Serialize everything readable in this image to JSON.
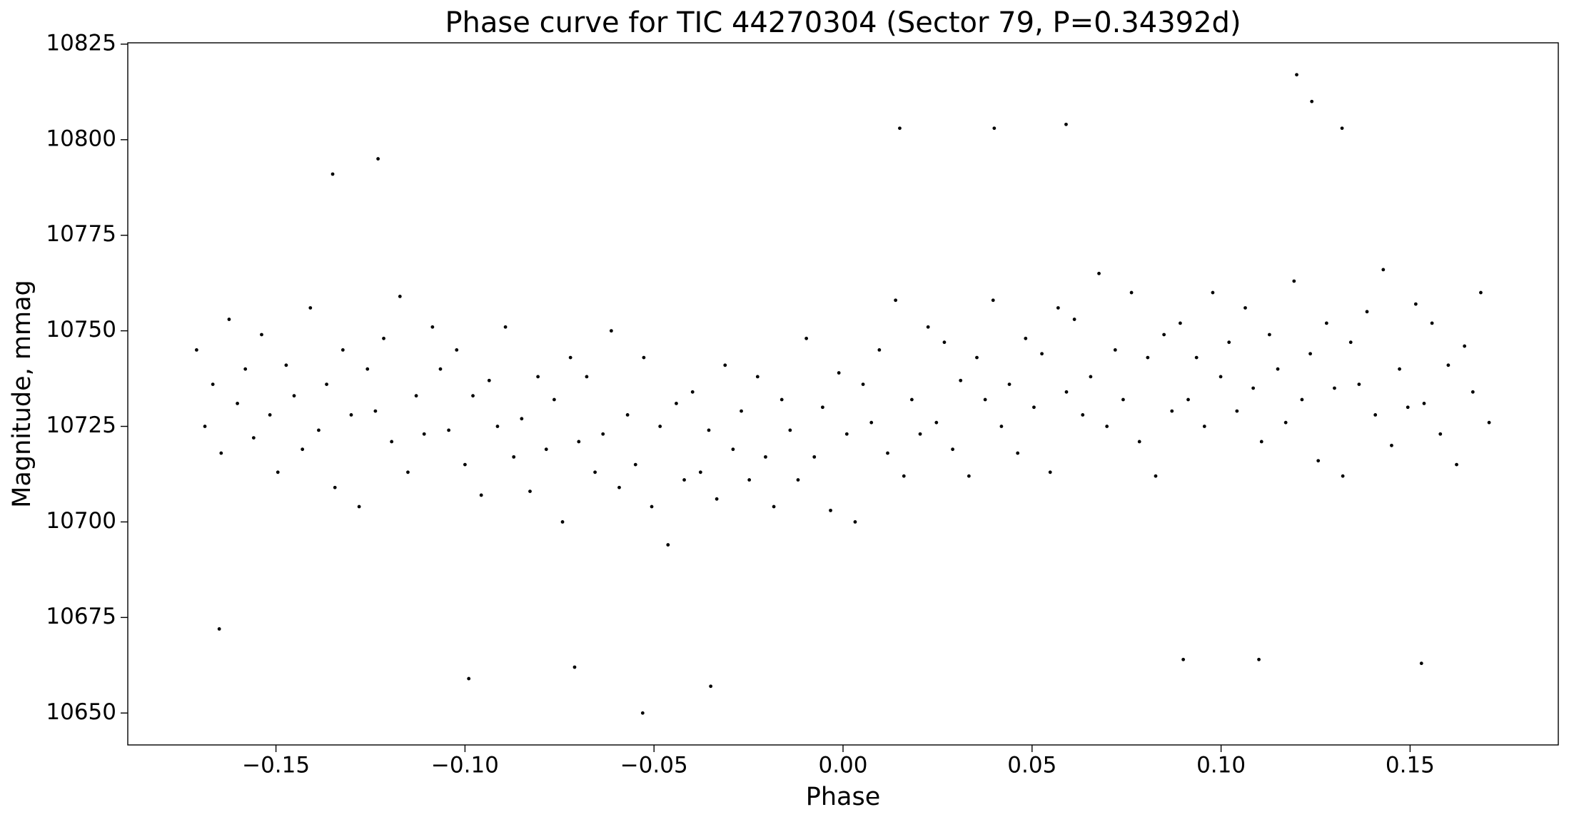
{
  "chart_data": {
    "type": "scatter",
    "title": "Phase curve for TIC 44270304 (Sector 79, P=0.34392d)",
    "xlabel": "Phase",
    "ylabel": "Magnitude, mmag",
    "color": "#000000",
    "xlim": [
      -0.1892,
      0.1892
    ],
    "ylim": [
      10641.65,
      10825.35
    ],
    "xticks": [
      {
        "value": -0.15,
        "label": "−0.15"
      },
      {
        "value": -0.1,
        "label": "−0.10"
      },
      {
        "value": -0.05,
        "label": "−0.05"
      },
      {
        "value": 0,
        "label": "0.00"
      },
      {
        "value": 0.05,
        "label": "0.05"
      },
      {
        "value": 0.1,
        "label": "0.10"
      },
      {
        "value": 0.15,
        "label": "0.15"
      }
    ],
    "yticks": [
      10650,
      10675,
      10700,
      10725,
      10750,
      10775,
      10800,
      10825
    ],
    "grid": false,
    "x": [
      -0.171,
      -0.1688,
      -0.1667,
      -0.1645,
      -0.1624,
      -0.1602,
      -0.1581,
      -0.1559,
      -0.1538,
      -0.1516,
      -0.1495,
      -0.1473,
      -0.1452,
      -0.143,
      -0.1409,
      -0.1387,
      -0.1366,
      -0.1344,
      -0.1323,
      -0.1301,
      -0.128,
      -0.1258,
      -0.1237,
      -0.1215,
      -0.1194,
      -0.1172,
      -0.1151,
      -0.1129,
      -0.1108,
      -0.1086,
      -0.1065,
      -0.1043,
      -0.1022,
      -0.1,
      -0.0979,
      -0.0957,
      -0.0936,
      -0.0914,
      -0.0893,
      -0.0871,
      -0.085,
      -0.0828,
      -0.0807,
      -0.0785,
      -0.0764,
      -0.0742,
      -0.0721,
      -0.0699,
      -0.0678,
      -0.0656,
      -0.0635,
      -0.0613,
      -0.0592,
      -0.057,
      -0.0549,
      -0.0527,
      -0.0506,
      -0.0484,
      -0.0463,
      -0.0441,
      -0.042,
      -0.0398,
      -0.0377,
      -0.0355,
      -0.0334,
      -0.0312,
      -0.0291,
      -0.0269,
      -0.0248,
      -0.0226,
      -0.0205,
      -0.0183,
      -0.0162,
      -0.014,
      -0.0119,
      -0.0097,
      -0.0076,
      -0.0054,
      -0.0033,
      -0.0011,
      0.001,
      0.0032,
      0.0053,
      0.0075,
      0.0096,
      0.0118,
      0.0139,
      0.0161,
      0.0182,
      0.0204,
      0.0225,
      0.0247,
      0.0268,
      0.029,
      0.0311,
      0.0333,
      0.0354,
      0.0376,
      0.0397,
      0.0419,
      0.044,
      0.0462,
      0.0483,
      0.0505,
      0.0526,
      0.0548,
      0.0569,
      0.0591,
      0.0612,
      0.0634,
      0.0655,
      0.0677,
      0.0698,
      0.072,
      0.0741,
      0.0763,
      0.0784,
      0.0806,
      0.0827,
      0.0849,
      0.087,
      0.0892,
      0.0913,
      0.0935,
      0.0956,
      0.0978,
      0.0999,
      0.1021,
      0.1042,
      0.1064,
      0.1085,
      0.1107,
      0.1128,
      0.115,
      0.1171,
      0.1193,
      0.1214,
      0.1236,
      0.1257,
      0.1279,
      0.13,
      0.1322,
      0.1343,
      0.1365,
      0.1386,
      0.1408,
      0.1429,
      0.1451,
      0.1472,
      0.1494,
      0.1515,
      0.1537,
      0.1558,
      0.158,
      0.1601,
      0.1623,
      0.1644,
      0.1666,
      0.1687,
      0.1709,
      -0.053,
      0.12,
      0.124,
      -0.035,
      0.059,
      -0.123,
      -0.165,
      0.132,
      0.015,
      -0.071,
      0.09,
      0.153,
      -0.099,
      0.04,
      -0.135,
      0.11
    ],
    "values": [
      10745,
      10725,
      10736,
      10718,
      10753,
      10731,
      10740,
      10722,
      10749,
      10728,
      10713,
      10741,
      10733,
      10719,
      10756,
      10724,
      10736,
      10709,
      10745,
      10728,
      10704,
      10740,
      10729,
      10748,
      10721,
      10759,
      10713,
      10733,
      10723,
      10751,
      10740,
      10724,
      10745,
      10715,
      10733,
      10707,
      10737,
      10725,
      10751,
      10717,
      10727,
      10708,
      10738,
      10719,
      10732,
      10700,
      10743,
      10721,
      10738,
      10713,
      10723,
      10750,
      10709,
      10728,
      10715,
      10743,
      10704,
      10725,
      10694,
      10731,
      10711,
      10734,
      10713,
      10724,
      10706,
      10741,
      10719,
      10729,
      10711,
      10738,
      10717,
      10704,
      10732,
      10724,
      10711,
      10748,
      10717,
      10730,
      10703,
      10739,
      10723,
      10700,
      10736,
      10726,
      10745,
      10718,
      10758,
      10712,
      10732,
      10723,
      10751,
      10726,
      10747,
      10719,
      10737,
      10712,
      10743,
      10732,
      10758,
      10725,
      10736,
      10718,
      10748,
      10730,
      10744,
      10713,
      10756,
      10734,
      10753,
      10728,
      10738,
      10765,
      10725,
      10745,
      10732,
      10760,
      10721,
      10743,
      10712,
      10749,
      10729,
      10752,
      10732,
      10743,
      10725,
      10760,
      10738,
      10747,
      10729,
      10756,
      10735,
      10721,
      10749,
      10740,
      10726,
      10763,
      10732,
      10744,
      10716,
      10752,
      10735,
      10712,
      10747,
      10736,
      10755,
      10728,
      10766,
      10720,
      10740,
      10730,
      10757,
      10731,
      10752,
      10723,
      10741,
      10715,
      10746,
      10734,
      10760,
      10726,
      10650,
      10817,
      10810,
      10657,
      10804,
      10795,
      10672,
      10803,
      10803,
      10662,
      10664,
      10663,
      10659,
      10803,
      10791,
      10664
    ]
  }
}
